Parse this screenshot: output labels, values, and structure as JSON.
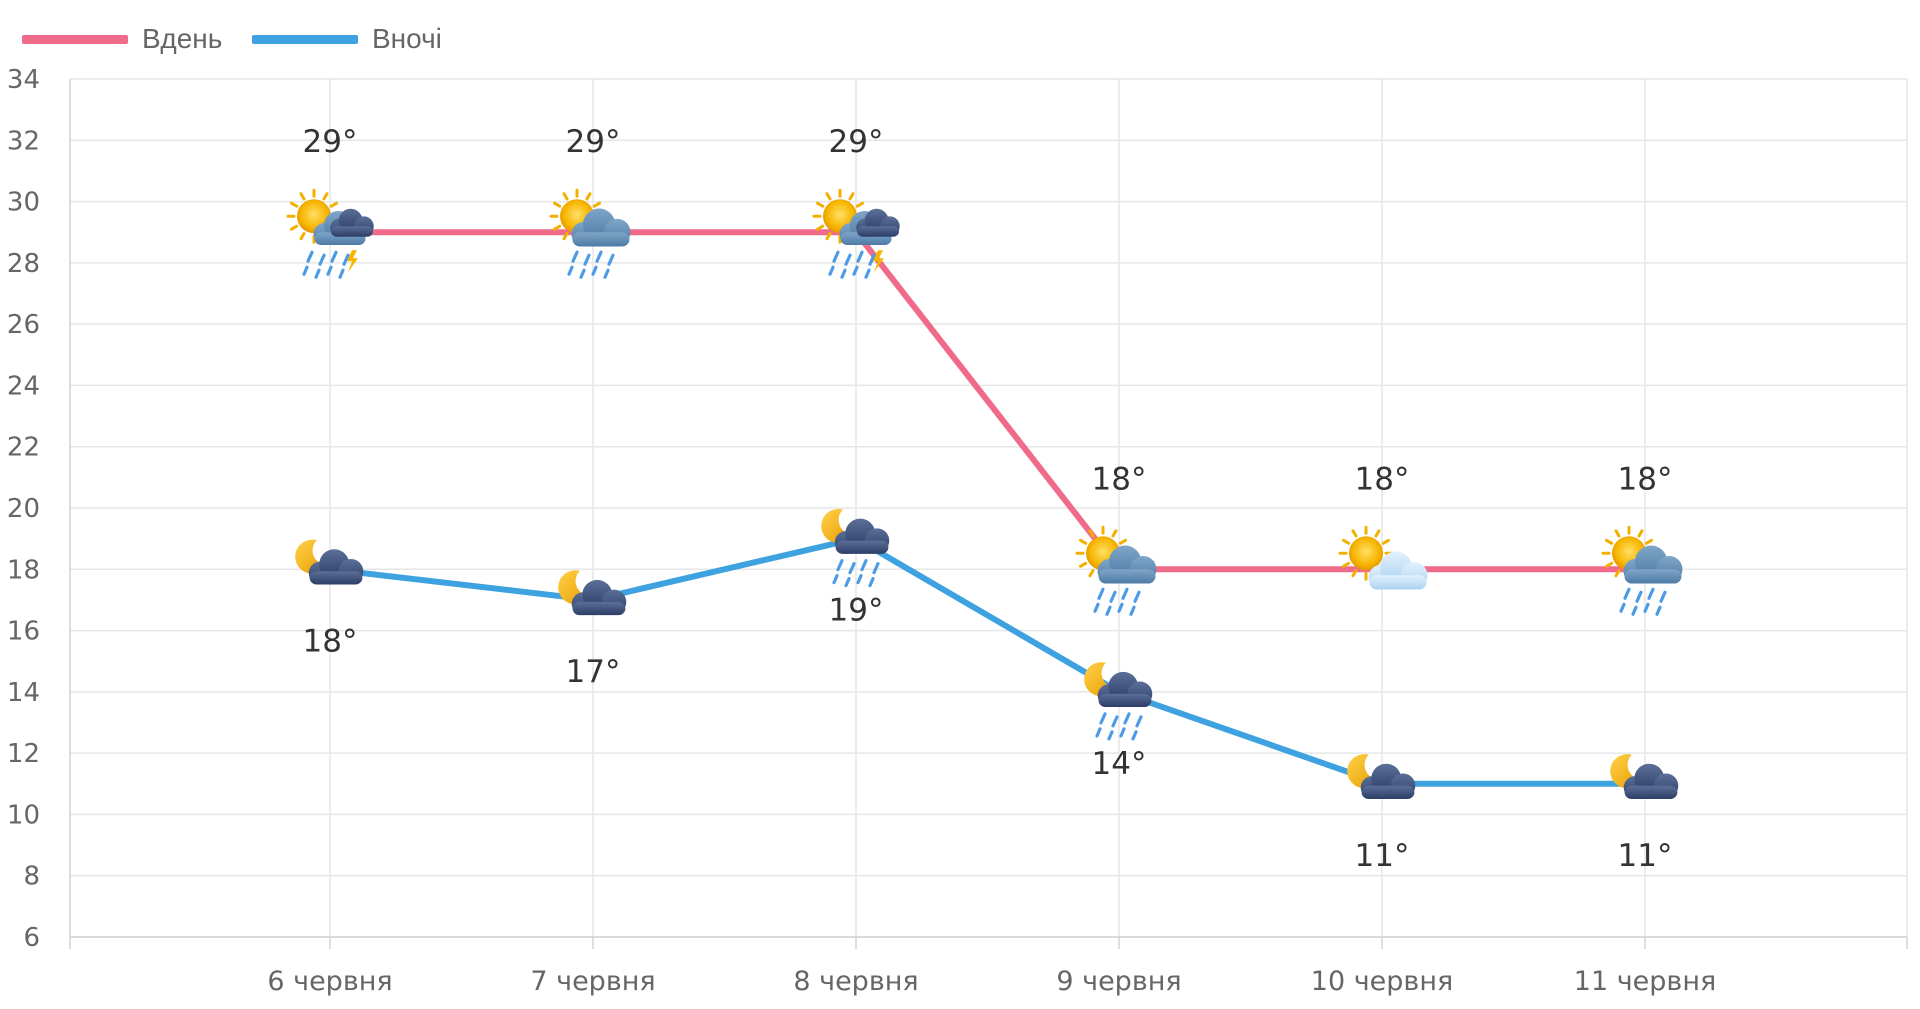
{
  "chart_data": {
    "type": "line",
    "categories": [
      "6 червня",
      "7 червня",
      "8 червня",
      "9 червня",
      "10 червня",
      "11 червня"
    ],
    "ylim": [
      6,
      34
    ],
    "y_ticks": [
      6,
      8,
      10,
      12,
      14,
      16,
      18,
      20,
      22,
      24,
      26,
      28,
      30,
      32,
      34
    ],
    "grid": true,
    "legend_position": "top-left",
    "series": [
      {
        "name": "Вдень",
        "color": "#f06a8a",
        "values": [
          29,
          29,
          29,
          18,
          18,
          18
        ],
        "labels": [
          "29°",
          "29°",
          "29°",
          "18°",
          "18°",
          "18°"
        ],
        "icons": [
          "sun-cloud-rain-thunder-icon",
          "sun-cloud-rain-icon",
          "sun-cloud-rain-thunder-icon",
          "sun-cloud-rain-icon",
          "sun-cloud-icon",
          "sun-cloud-rain-icon"
        ]
      },
      {
        "name": "Вночі",
        "color": "#3fa2e0",
        "values": [
          18,
          17,
          19,
          14,
          11,
          11
        ],
        "labels": [
          "18°",
          "17°",
          "19°",
          "14°",
          "11°",
          "11°"
        ],
        "icons": [
          "moon-cloud-icon",
          "moon-cloud-icon",
          "moon-cloud-rain-icon",
          "moon-cloud-rain-icon",
          "moon-cloud-icon",
          "moon-cloud-icon"
        ]
      }
    ]
  }
}
